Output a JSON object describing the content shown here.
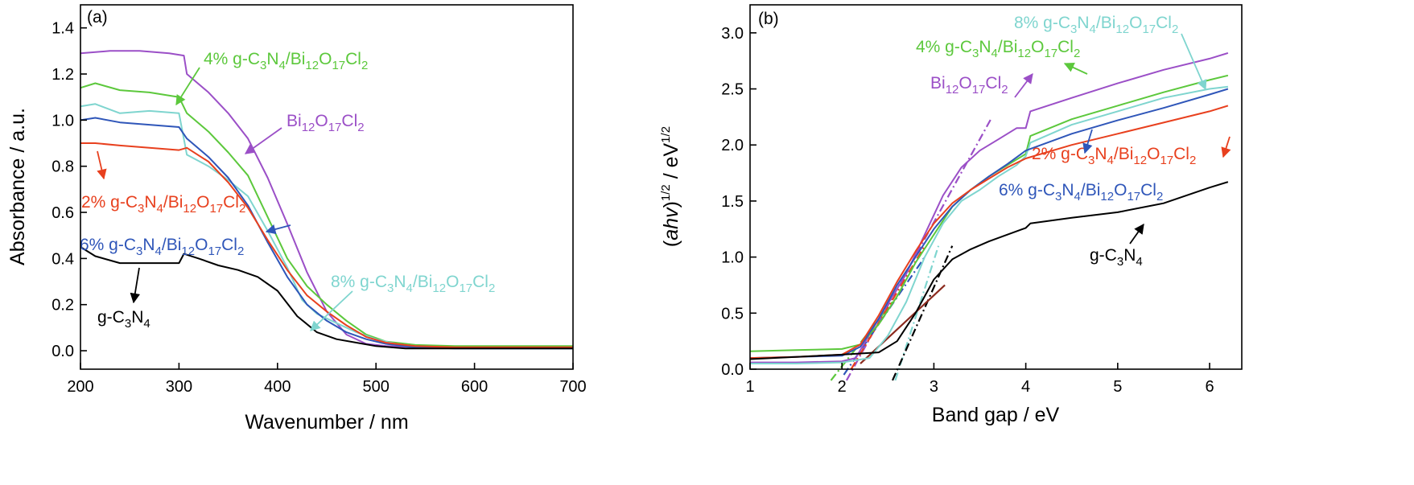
{
  "colors": {
    "bi": "#9b4fc7",
    "cn": "#000000",
    "p2": "#e8401e",
    "p4": "#5cc83c",
    "p6": "#2f56b9",
    "p8": "#7fd5cf",
    "tangent_brown": "#8b2a1e"
  },
  "chart_data": [
    {
      "type": "line",
      "panel_label": "(a)",
      "xlabel": "Wavenumber / nm",
      "ylabel": "Absorbance / a.u.",
      "xlim": [
        200,
        700
      ],
      "ylim": [
        -0.08,
        1.5
      ],
      "xticks": [
        200,
        300,
        400,
        500,
        600,
        700
      ],
      "xtick_labels": [
        "200",
        "300",
        "400",
        "500",
        "600",
        "700"
      ],
      "yticks": [
        0.0,
        0.2,
        0.4,
        0.6,
        0.8,
        1.0,
        1.2,
        1.4
      ],
      "ytick_labels": [
        "0.0",
        "0.2",
        "0.4",
        "0.6",
        "0.8",
        "1.0",
        "1.2",
        "1.4"
      ],
      "grid": false,
      "series": [
        {
          "key": "bi",
          "x": [
            200,
            230,
            260,
            290,
            305,
            308,
            330,
            350,
            370,
            390,
            410,
            430,
            450,
            470,
            490,
            510,
            540,
            580,
            620,
            660,
            700
          ],
          "y": [
            1.29,
            1.3,
            1.3,
            1.29,
            1.28,
            1.2,
            1.12,
            1.03,
            0.92,
            0.75,
            0.55,
            0.34,
            0.17,
            0.07,
            0.03,
            0.02,
            0.015,
            0.015,
            0.015,
            0.015,
            0.015
          ]
        },
        {
          "key": "p4",
          "x": [
            200,
            215,
            240,
            270,
            300,
            308,
            330,
            350,
            370,
            390,
            410,
            430,
            450,
            470,
            490,
            510,
            540,
            580,
            620,
            660,
            700
          ],
          "y": [
            1.14,
            1.16,
            1.13,
            1.12,
            1.1,
            1.03,
            0.95,
            0.86,
            0.76,
            0.58,
            0.4,
            0.28,
            0.2,
            0.13,
            0.07,
            0.04,
            0.025,
            0.02,
            0.02,
            0.02,
            0.02
          ]
        },
        {
          "key": "p8",
          "x": [
            200,
            215,
            240,
            270,
            300,
            308,
            330,
            350,
            370,
            390,
            410,
            425,
            440,
            460,
            480,
            500,
            520,
            550,
            600,
            650,
            700
          ],
          "y": [
            1.06,
            1.07,
            1.03,
            1.04,
            1.03,
            0.85,
            0.8,
            0.74,
            0.67,
            0.52,
            0.36,
            0.22,
            0.16,
            0.12,
            0.08,
            0.05,
            0.03,
            0.015,
            0.01,
            0.01,
            0.01
          ]
        },
        {
          "key": "p6",
          "x": [
            200,
            215,
            240,
            270,
            300,
            308,
            330,
            350,
            370,
            390,
            410,
            430,
            450,
            470,
            490,
            510,
            540,
            580,
            620,
            660,
            700
          ],
          "y": [
            1.0,
            1.01,
            0.99,
            0.98,
            0.97,
            0.92,
            0.84,
            0.75,
            0.63,
            0.47,
            0.32,
            0.2,
            0.13,
            0.08,
            0.05,
            0.03,
            0.015,
            0.01,
            0.01,
            0.01,
            0.01
          ]
        },
        {
          "key": "p2",
          "x": [
            200,
            215,
            240,
            270,
            300,
            308,
            330,
            350,
            370,
            390,
            410,
            430,
            450,
            470,
            490,
            510,
            540,
            580,
            620,
            660,
            700
          ],
          "y": [
            0.9,
            0.9,
            0.89,
            0.88,
            0.87,
            0.88,
            0.82,
            0.73,
            0.62,
            0.48,
            0.35,
            0.24,
            0.17,
            0.11,
            0.06,
            0.035,
            0.02,
            0.015,
            0.015,
            0.015,
            0.015
          ]
        },
        {
          "key": "cn",
          "x": [
            200,
            215,
            240,
            270,
            300,
            305,
            320,
            340,
            360,
            380,
            400,
            420,
            440,
            460,
            480,
            500,
            530,
            570,
            620,
            660,
            700
          ],
          "y": [
            0.45,
            0.41,
            0.38,
            0.38,
            0.38,
            0.42,
            0.4,
            0.37,
            0.35,
            0.32,
            0.26,
            0.15,
            0.08,
            0.05,
            0.035,
            0.02,
            0.01,
            0.01,
            0.01,
            0.01,
            0.01
          ]
        }
      ],
      "labels": [
        {
          "key": "p4",
          "text": [
            "4% g-C",
            "3",
            "N",
            "4",
            "/Bi",
            "12",
            "O",
            "17",
            "Cl",
            "2"
          ]
        },
        {
          "key": "bi",
          "text": [
            "Bi",
            "12",
            "O",
            "17",
            "Cl",
            "2"
          ]
        },
        {
          "key": "p2",
          "text": [
            "2% g-C",
            "3",
            "N",
            "4",
            "/Bi",
            "12",
            "O",
            "17",
            "Cl",
            "2"
          ]
        },
        {
          "key": "p6",
          "text": [
            "6% g-C",
            "3",
            "N",
            "4",
            "/Bi",
            "12",
            "O",
            "17",
            "Cl",
            "2"
          ]
        },
        {
          "key": "p8",
          "text": [
            "8% g-C",
            "3",
            "N",
            "4",
            "/Bi",
            "12",
            "O",
            "17",
            "Cl",
            "2"
          ]
        },
        {
          "key": "cn",
          "text": [
            "g-C",
            "3",
            "N",
            "4"
          ]
        }
      ]
    },
    {
      "type": "line",
      "panel_label": "(b)",
      "xlabel": "Band gap / eV",
      "ylabel_parts": [
        "(",
        "ahv",
        ")",
        "1/2",
        " / eV",
        "1/2"
      ],
      "xlim": [
        1,
        6.35
      ],
      "ylim": [
        0,
        3.25
      ],
      "xticks": [
        1,
        2,
        3,
        4,
        5,
        6
      ],
      "xtick_labels": [
        "1",
        "2",
        "3",
        "4",
        "5",
        "6"
      ],
      "yticks": [
        0.0,
        0.5,
        1.0,
        1.5,
        2.0,
        2.5,
        3.0
      ],
      "ytick_labels": [
        "0.0",
        "0.5",
        "1.0",
        "1.5",
        "2.0",
        "2.5",
        "3.0"
      ],
      "grid": false,
      "series": [
        {
          "key": "bi",
          "x": [
            1.0,
            1.5,
            2.0,
            2.15,
            2.4,
            2.7,
            2.9,
            3.1,
            3.3,
            3.5,
            3.7,
            3.9,
            4.0,
            4.05,
            4.5,
            5.0,
            5.5,
            6.0,
            6.2
          ],
          "y": [
            0.06,
            0.06,
            0.07,
            0.1,
            0.45,
            0.85,
            1.2,
            1.55,
            1.8,
            1.95,
            2.05,
            2.15,
            2.15,
            2.3,
            2.42,
            2.55,
            2.67,
            2.77,
            2.82
          ]
        },
        {
          "key": "p4",
          "x": [
            1.0,
            1.5,
            2.0,
            2.2,
            2.4,
            2.6,
            2.8,
            3.0,
            3.2,
            3.4,
            3.6,
            3.8,
            4.0,
            4.05,
            4.5,
            5.0,
            5.5,
            6.0,
            6.2
          ],
          "y": [
            0.16,
            0.17,
            0.18,
            0.22,
            0.4,
            0.65,
            0.95,
            1.2,
            1.45,
            1.6,
            1.72,
            1.82,
            1.92,
            2.08,
            2.23,
            2.35,
            2.47,
            2.58,
            2.62
          ]
        },
        {
          "key": "p8",
          "x": [
            1.0,
            1.5,
            2.0,
            2.3,
            2.5,
            2.7,
            2.9,
            3.1,
            3.3,
            3.5,
            3.7,
            3.9,
            4.0,
            4.05,
            4.5,
            5.0,
            5.5,
            6.0,
            6.2
          ],
          "y": [
            0.05,
            0.05,
            0.06,
            0.1,
            0.3,
            0.6,
            1.0,
            1.3,
            1.5,
            1.6,
            1.72,
            1.82,
            1.9,
            2.02,
            2.18,
            2.3,
            2.42,
            2.5,
            2.52
          ]
        },
        {
          "key": "p6",
          "x": [
            1.0,
            1.5,
            2.0,
            2.2,
            2.4,
            2.6,
            2.8,
            3.0,
            3.2,
            3.4,
            3.6,
            3.8,
            4.0,
            4.5,
            5.0,
            5.5,
            6.0,
            6.2
          ],
          "y": [
            0.1,
            0.11,
            0.12,
            0.2,
            0.45,
            0.75,
            1.0,
            1.25,
            1.45,
            1.6,
            1.72,
            1.83,
            1.95,
            2.1,
            2.22,
            2.33,
            2.45,
            2.5
          ]
        },
        {
          "key": "p2",
          "x": [
            1.0,
            1.5,
            2.0,
            2.2,
            2.4,
            2.6,
            2.8,
            3.0,
            3.2,
            3.4,
            3.6,
            3.8,
            4.0,
            4.5,
            5.0,
            5.5,
            6.0,
            6.2
          ],
          "y": [
            0.1,
            0.11,
            0.13,
            0.22,
            0.48,
            0.78,
            1.05,
            1.3,
            1.48,
            1.6,
            1.7,
            1.8,
            1.88,
            2.0,
            2.1,
            2.2,
            2.3,
            2.35
          ]
        },
        {
          "key": "cn",
          "x": [
            1.0,
            1.5,
            2.0,
            2.4,
            2.6,
            2.8,
            3.0,
            3.2,
            3.4,
            3.6,
            3.8,
            4.0,
            4.05,
            4.5,
            5.0,
            5.5,
            6.0,
            6.2
          ],
          "y": [
            0.09,
            0.11,
            0.13,
            0.15,
            0.25,
            0.5,
            0.8,
            0.98,
            1.07,
            1.14,
            1.2,
            1.26,
            1.3,
            1.35,
            1.4,
            1.48,
            1.62,
            1.67
          ]
        }
      ],
      "tangents": [
        {
          "key": "bi",
          "x": [
            2.05,
            3.62
          ],
          "y": [
            -0.1,
            2.23
          ]
        },
        {
          "key": "p4",
          "x": [
            1.88,
            2.55
          ],
          "y": [
            -0.1,
            0.6
          ]
        },
        {
          "key": "p6",
          "x": [
            2.02,
            2.9
          ],
          "y": [
            -0.05,
            1.0
          ]
        },
        {
          "key": "p2",
          "x": [
            2.1,
            2.9
          ],
          "y": [
            0.0,
            1.1
          ]
        },
        {
          "key": "p8",
          "x": [
            2.58,
            3.05
          ],
          "y": [
            -0.1,
            1.1
          ]
        },
        {
          "key": "cn",
          "x": [
            2.55,
            3.2
          ],
          "y": [
            -0.1,
            1.1
          ]
        },
        {
          "key": "tangent_brown",
          "x": [
            2.2,
            3.12
          ],
          "y": [
            0.05,
            0.75
          ]
        }
      ],
      "labels": [
        {
          "key": "p8",
          "text": [
            "8% g-C",
            "3",
            "N",
            "4",
            "/Bi",
            "12",
            "O",
            "17",
            "Cl",
            "2"
          ]
        },
        {
          "key": "p4",
          "text": [
            "4% g-C",
            "3",
            "N",
            "4",
            "/Bi",
            "12",
            "O",
            "17",
            "Cl",
            "2"
          ]
        },
        {
          "key": "bi",
          "text": [
            "Bi",
            "12",
            "O",
            "17",
            "Cl",
            "2"
          ]
        },
        {
          "key": "p2",
          "text": [
            "2% g-C",
            "3",
            "N",
            "4",
            "/Bi",
            "12",
            "O",
            "17",
            "Cl",
            "2"
          ]
        },
        {
          "key": "p6",
          "text": [
            "6% g-C",
            "3",
            "N",
            "4",
            "/Bi",
            "12",
            "O",
            "17",
            "Cl",
            "2"
          ]
        },
        {
          "key": "cn",
          "text": [
            "g-C",
            "3",
            "N",
            "4"
          ]
        }
      ]
    }
  ]
}
